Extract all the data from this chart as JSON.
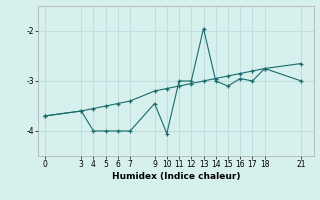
{
  "xlabel": "Humidex (Indice chaleur)",
  "background_color": "#d6f0ed",
  "grid_color": "#c0dedd",
  "line_color": "#1a6b6b",
  "x_data": [
    0,
    3,
    4,
    5,
    6,
    7,
    9,
    10,
    11,
    12,
    13,
    14,
    15,
    16,
    17,
    18,
    21
  ],
  "y_data": [
    -3.7,
    -3.6,
    -4.0,
    -4.0,
    -4.0,
    -4.0,
    -3.45,
    -4.05,
    -3.0,
    -3.0,
    -1.95,
    -3.0,
    -3.1,
    -2.95,
    -3.0,
    -2.75,
    -3.0
  ],
  "x_data2": [
    0,
    3,
    4,
    5,
    6,
    7,
    9,
    10,
    11,
    12,
    13,
    14,
    15,
    16,
    17,
    18,
    21
  ],
  "y_data2": [
    -3.7,
    -3.6,
    -3.55,
    -3.5,
    -3.45,
    -3.4,
    -3.2,
    -3.15,
    -3.1,
    -3.05,
    -3.0,
    -2.95,
    -2.9,
    -2.85,
    -2.8,
    -2.75,
    -2.65
  ],
  "xticks": [
    0,
    3,
    4,
    5,
    6,
    7,
    9,
    10,
    11,
    12,
    13,
    14,
    15,
    16,
    17,
    18,
    21
  ],
  "yticks": [
    -4,
    -3,
    -2
  ],
  "ylim": [
    -4.5,
    -1.5
  ],
  "xlim": [
    -0.5,
    22.0
  ]
}
